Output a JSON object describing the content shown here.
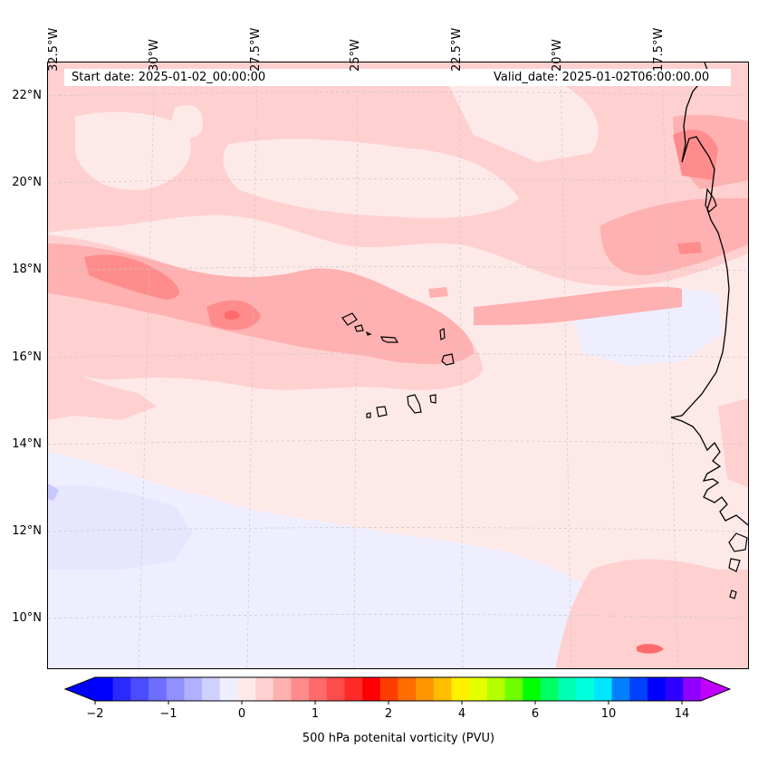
{
  "header": {
    "start_date": "Start date: 2025-01-02_00:00:00",
    "valid_date": "Valid_date: 2025-01-02T06:00:00.00"
  },
  "map": {
    "longitude_labels": [
      "32.5°W",
      "30°W",
      "27.5°W",
      "25°W",
      "22.5°W",
      "20°W",
      "17.5°W"
    ],
    "latitude_labels": [
      "22°N",
      "20°N",
      "18°N",
      "16°N",
      "14°N",
      "12°N",
      "10°N"
    ],
    "colors": {
      "coastline": "#000000",
      "gridline": "#c8c8c8",
      "background_level": "#fee9e9",
      "level_0_to_0_25": "#ffd0d0",
      "level_0_25_to_0_5": "#ffb0b0",
      "level_0_5_to_0_75": "#ff8c8c",
      "level_0_75_to_1": "#ff6b6b",
      "negative_level": "#eeeeff",
      "strong_negative_level": "#c8c8ff"
    }
  },
  "colorbar": {
    "title": "500 hPa potenital vorticity (PVU)",
    "tick_labels": [
      "−2",
      "−1",
      "0",
      "1",
      "2",
      "4",
      "6",
      "10",
      "14"
    ],
    "colors": [
      "#0000ff",
      "#2a2aff",
      "#4c4cff",
      "#6e6eff",
      "#9090ff",
      "#b0b0ff",
      "#d0d0ff",
      "#eeeeff",
      "#fee9e9",
      "#ffd0d0",
      "#ffb0b0",
      "#ff8c8c",
      "#ff6b6b",
      "#ff4c4c",
      "#ff2a2a",
      "#ff0000",
      "#ff3c00",
      "#ff6e00",
      "#ff9600",
      "#ffbe00",
      "#fff000",
      "#e4ff00",
      "#b4ff00",
      "#6eff00",
      "#00ff00",
      "#00ff64",
      "#00ffb4",
      "#00ffdc",
      "#00e6ff",
      "#0080ff",
      "#0040ff",
      "#0000ff",
      "#3000ff",
      "#9000ff"
    ],
    "extend_low_color": "#0000ff",
    "extend_high_color": "#c000ff"
  }
}
